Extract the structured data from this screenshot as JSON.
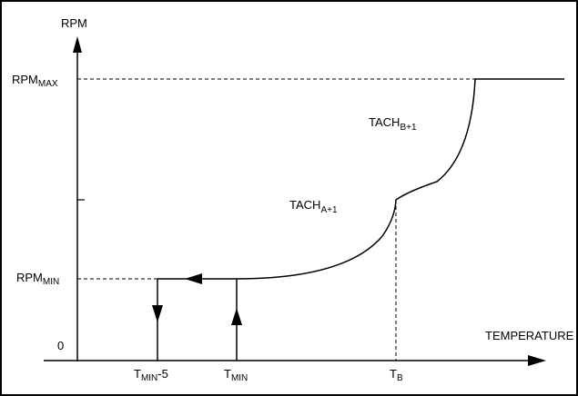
{
  "axes": {
    "y_title": "RPM",
    "x_title": "TEMPERATURE",
    "origin": "0"
  },
  "y_labels": {
    "max_main": "RPM",
    "max_sub": "MAX",
    "min_main": "RPM",
    "min_sub": "MIN"
  },
  "x_labels": {
    "tmin5_main": "T",
    "tmin5_sub": "MIN",
    "tmin5_suffix": "-5",
    "tmin_main": "T",
    "tmin_sub": "MIN",
    "tb_main": "T",
    "tb_sub": "B"
  },
  "curve_labels": {
    "a_main": "TACH",
    "a_sub": "A+1",
    "b_main": "TACH",
    "b_sub": "B+1"
  }
}
